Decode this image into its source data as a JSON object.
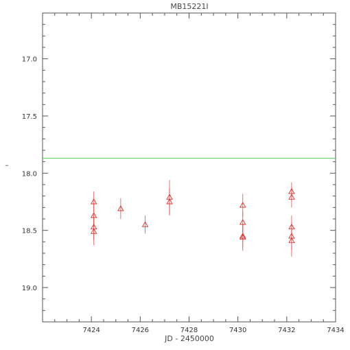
{
  "chart_data": {
    "type": "scatter",
    "title": "MB15221I",
    "xlabel": "JD - 2450000",
    "ylabel": "I",
    "xlim": [
      7422,
      7434
    ],
    "ylim": [
      19.3,
      16.6
    ],
    "y_inverted": true,
    "x_ticks": [
      7424,
      7426,
      7428,
      7430,
      7432,
      7434
    ],
    "y_ticks": [
      17.0,
      17.5,
      18.0,
      18.5,
      19.0
    ],
    "y_tick_labels": [
      "17.0",
      "17.5",
      "18.0",
      "18.5",
      "19.0"
    ],
    "grid": false,
    "reference_line": {
      "y": 17.87,
      "color": "#55cc55"
    },
    "series": [
      {
        "marker": "triangle",
        "color": "#e03030",
        "points": [
          {
            "x": 7424.1,
            "y": 18.25,
            "err": 0.09
          },
          {
            "x": 7424.1,
            "y": 18.37,
            "err": 0.1
          },
          {
            "x": 7424.1,
            "y": 18.47,
            "err": 0.11
          },
          {
            "x": 7424.1,
            "y": 18.51,
            "err": 0.12
          },
          {
            "x": 7425.2,
            "y": 18.31,
            "err": 0.09
          },
          {
            "x": 7426.2,
            "y": 18.45,
            "err": 0.08
          },
          {
            "x": 7427.2,
            "y": 18.21,
            "err": 0.15
          },
          {
            "x": 7427.2,
            "y": 18.25,
            "err": 0.12
          },
          {
            "x": 7430.2,
            "y": 18.28,
            "err": 0.1
          },
          {
            "x": 7430.2,
            "y": 18.43,
            "err": 0.1
          },
          {
            "x": 7430.2,
            "y": 18.55,
            "err": 0.1
          },
          {
            "x": 7430.2,
            "y": 18.56,
            "err": 0.12
          },
          {
            "x": 7432.2,
            "y": 18.16,
            "err": 0.08
          },
          {
            "x": 7432.2,
            "y": 18.21,
            "err": 0.09
          },
          {
            "x": 7432.2,
            "y": 18.47,
            "err": 0.1
          },
          {
            "x": 7432.2,
            "y": 18.55,
            "err": 0.12
          },
          {
            "x": 7432.2,
            "y": 18.59,
            "err": 0.14
          }
        ]
      }
    ]
  }
}
